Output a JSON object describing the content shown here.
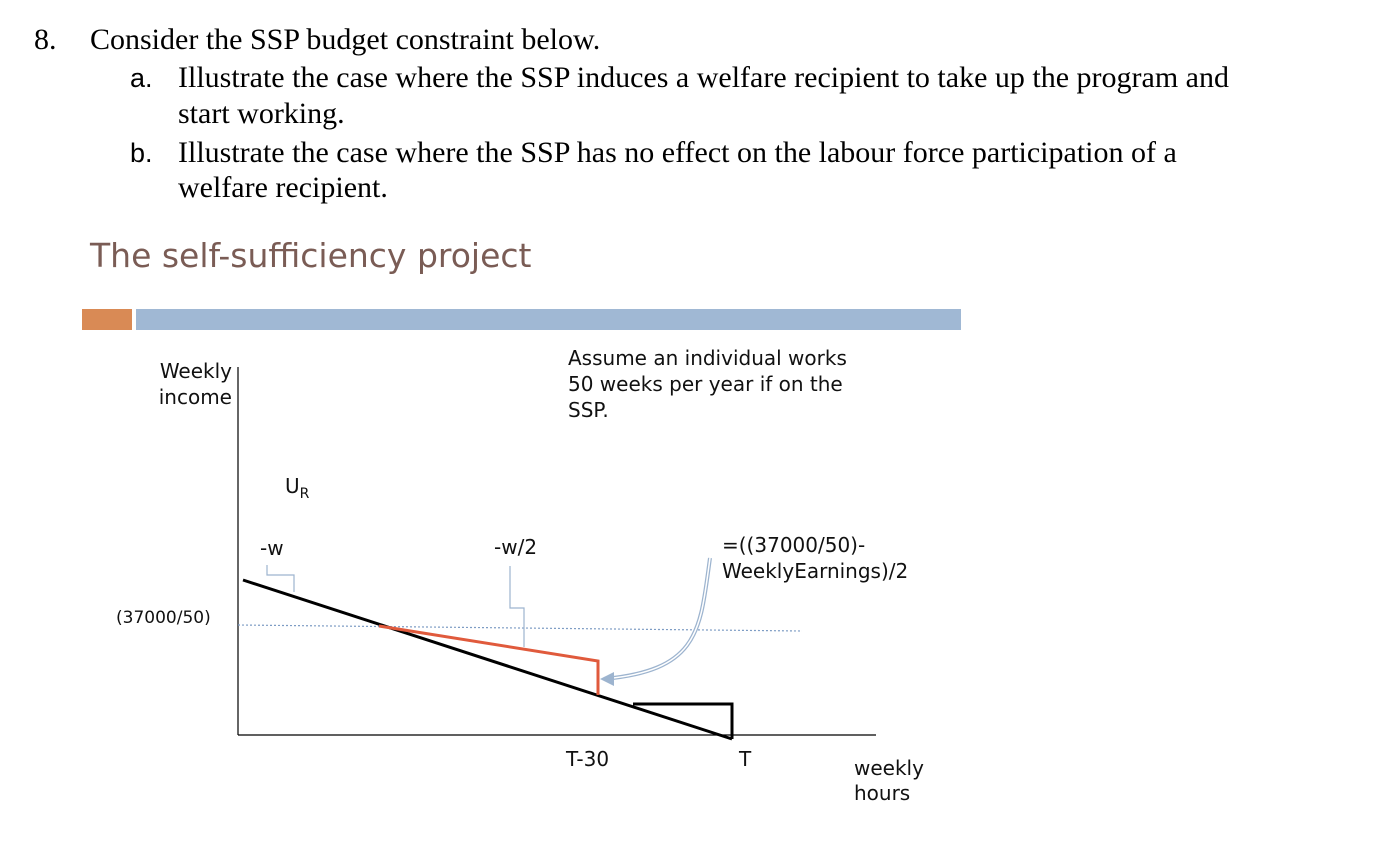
{
  "question": {
    "number": "8.",
    "prompt": "Consider the SSP budget constraint below.",
    "parts": [
      {
        "letter": "a.",
        "line1": "Illustrate the case where the SSP induces a welfare recipient to take up the program and",
        "line2": "start working."
      },
      {
        "letter": "b.",
        "line1": "Illustrate the case where the SSP has no effect on the labour force participation of a",
        "line2": "welfare recipient."
      }
    ]
  },
  "slide": {
    "title": "The self-sufficiency project",
    "accent_colors": {
      "orange": "#d98a55",
      "blue": "#a0b8d4"
    }
  },
  "diagram": {
    "y_axis_label_line1": "Weekly",
    "y_axis_label_line2": "income",
    "x_axis_label_line1": "weekly",
    "x_axis_label_line2": "hours",
    "note_line1": "Assume an individual works",
    "note_line2": "50 weeks per year if on the",
    "note_line3": "SSP.",
    "indifference_label_main": "U",
    "indifference_label_sub": "R",
    "slope_label_original": "-w",
    "slope_label_ssp": "-w/2",
    "formula_line1": "=((37000/50)-",
    "formula_line2": "WeeklyEarnings)/2",
    "ssp_income_level": "(37000/50)",
    "tick_t_minus_30": "T-30",
    "tick_t": "T",
    "colors": {
      "budget_line": "#000000",
      "ssp_segment": "#e05a3c",
      "callout": "#9db4cf",
      "reference_line": "#7d9cc4"
    }
  }
}
